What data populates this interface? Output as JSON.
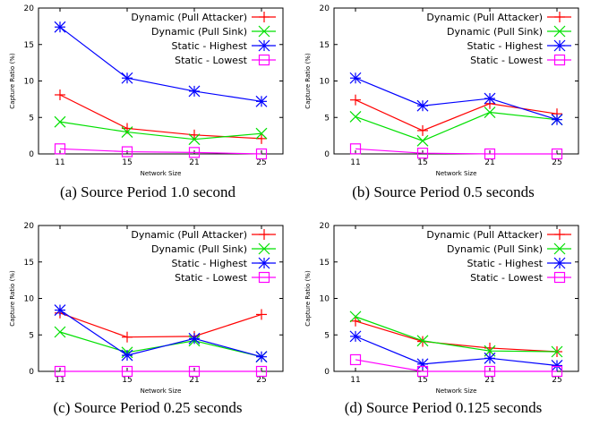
{
  "colors": {
    "Dynamic (Pull Attacker)": "#ff0000",
    "Dynamic (Pull Sink)": "#00e000",
    "Static - Highest": "#0000ff",
    "Static - Lowest": "#ff00ff"
  },
  "chart_data": [
    {
      "type": "line",
      "caption": "(a) Source Period 1.0 second",
      "xlabel": "Network Size",
      "ylabel": "Capture Ratio (%)",
      "categories": [
        "11",
        "15",
        "21",
        "25"
      ],
      "ylim": [
        0,
        20
      ],
      "yticks": [
        0,
        5,
        10,
        15,
        20
      ],
      "grid": false,
      "legend": "top-right",
      "series": [
        {
          "name": "Dynamic (Pull Attacker)",
          "marker": "plus",
          "values": [
            8.1,
            3.5,
            2.6,
            2.1
          ]
        },
        {
          "name": "Dynamic (Pull Sink)",
          "marker": "cross",
          "values": [
            4.4,
            3.0,
            2.0,
            2.8
          ]
        },
        {
          "name": "Static - Highest",
          "marker": "star",
          "values": [
            17.4,
            10.4,
            8.6,
            7.2
          ]
        },
        {
          "name": "Static - Lowest",
          "marker": "square",
          "values": [
            0.7,
            0.3,
            0.2,
            0.0
          ]
        }
      ]
    },
    {
      "type": "line",
      "caption": "(b) Source Period 0.5 seconds",
      "xlabel": "Network Size",
      "ylabel": "Capture Ratio (%)",
      "categories": [
        "11",
        "15",
        "21",
        "25"
      ],
      "ylim": [
        0,
        20
      ],
      "yticks": [
        0,
        5,
        10,
        15,
        20
      ],
      "grid": false,
      "legend": "top-right",
      "series": [
        {
          "name": "Dynamic (Pull Attacker)",
          "marker": "plus",
          "values": [
            7.4,
            3.2,
            6.9,
            5.5
          ]
        },
        {
          "name": "Dynamic (Pull Sink)",
          "marker": "cross",
          "values": [
            5.1,
            1.8,
            5.7,
            4.7
          ]
        },
        {
          "name": "Static - Highest",
          "marker": "star",
          "values": [
            10.4,
            6.6,
            7.6,
            4.7
          ]
        },
        {
          "name": "Static - Lowest",
          "marker": "square",
          "values": [
            0.7,
            0.1,
            0.0,
            0.0
          ]
        }
      ]
    },
    {
      "type": "line",
      "caption": "(c) Source Period 0.25 seconds",
      "xlabel": "Network Size",
      "ylabel": "Capture Ratio (%)",
      "categories": [
        "11",
        "15",
        "21",
        "25"
      ],
      "ylim": [
        0,
        20
      ],
      "yticks": [
        0,
        5,
        10,
        15,
        20
      ],
      "grid": false,
      "legend": "top-right",
      "series": [
        {
          "name": "Dynamic (Pull Attacker)",
          "marker": "plus",
          "values": [
            8.0,
            4.7,
            4.8,
            7.8
          ]
        },
        {
          "name": "Dynamic (Pull Sink)",
          "marker": "cross",
          "values": [
            5.4,
            2.6,
            4.2,
            2.0
          ]
        },
        {
          "name": "Static - Highest",
          "marker": "star",
          "values": [
            8.4,
            2.2,
            4.5,
            2.0
          ]
        },
        {
          "name": "Static - Lowest",
          "marker": "square",
          "values": [
            0.0,
            0.0,
            0.0,
            0.0
          ]
        }
      ]
    },
    {
      "type": "line",
      "caption": "(d) Source Period 0.125 seconds",
      "xlabel": "Network Size",
      "ylabel": "Capture Ratio (%)",
      "categories": [
        "11",
        "15",
        "21",
        "25"
      ],
      "ylim": [
        0,
        20
      ],
      "yticks": [
        0,
        5,
        10,
        15,
        20
      ],
      "grid": false,
      "legend": "top-right",
      "series": [
        {
          "name": "Dynamic (Pull Attacker)",
          "marker": "plus",
          "values": [
            6.9,
            4.1,
            3.2,
            2.7
          ]
        },
        {
          "name": "Dynamic (Pull Sink)",
          "marker": "cross",
          "values": [
            7.5,
            4.2,
            2.8,
            2.7
          ]
        },
        {
          "name": "Static - Highest",
          "marker": "star",
          "values": [
            4.8,
            1.0,
            1.8,
            0.8
          ]
        },
        {
          "name": "Static - Lowest",
          "marker": "square",
          "values": [
            1.6,
            0.0,
            0.0,
            0.0
          ]
        }
      ]
    }
  ]
}
